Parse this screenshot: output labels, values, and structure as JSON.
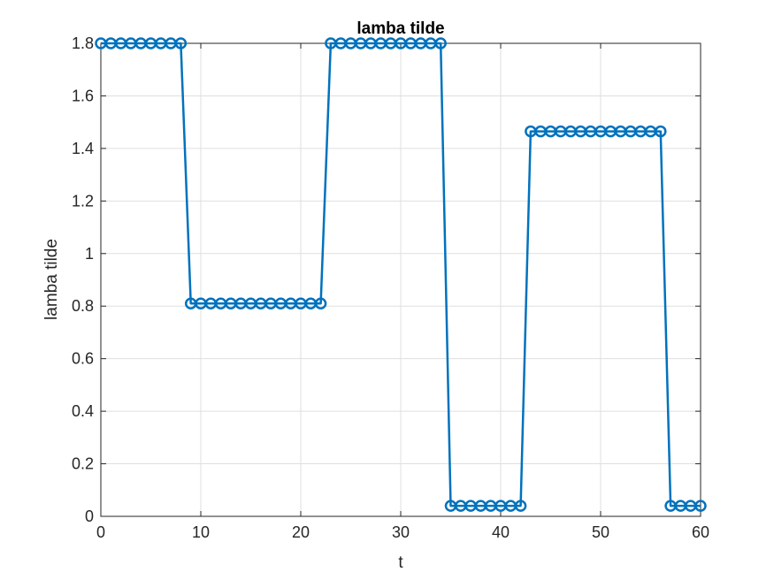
{
  "chart_data": {
    "type": "line",
    "title": "lamba tilde",
    "xlabel": "t",
    "ylabel": "lamba tilde",
    "xlim": [
      0,
      60
    ],
    "ylim": [
      0,
      1.8
    ],
    "xticks": [
      0,
      10,
      20,
      30,
      40,
      50,
      60
    ],
    "yticks": [
      0,
      0.2,
      0.4,
      0.6,
      0.8,
      1,
      1.2,
      1.4,
      1.6,
      1.8
    ],
    "xtick_labels": [
      "0",
      "10",
      "20",
      "30",
      "40",
      "50",
      "60"
    ],
    "ytick_labels": [
      "0",
      "0.2",
      "0.4",
      "0.6",
      "0.8",
      "1",
      "1.2",
      "1.4",
      "1.6",
      "1.8"
    ],
    "grid": true,
    "marker": "circle",
    "color": "#0072BD",
    "series": [
      {
        "x": [
          0,
          1,
          2,
          3,
          4,
          5,
          6,
          7,
          8,
          9,
          10,
          11,
          12,
          13,
          14,
          15,
          16,
          17,
          18,
          19,
          20,
          21,
          22,
          23,
          24,
          25,
          26,
          27,
          28,
          29,
          30,
          31,
          32,
          33,
          34,
          35,
          36,
          37,
          38,
          39,
          40,
          41,
          42,
          43,
          44,
          45,
          46,
          47,
          48,
          49,
          50,
          51,
          52,
          53,
          54,
          55,
          56,
          57,
          58,
          59,
          60
        ],
        "y": [
          1.8,
          1.8,
          1.8,
          1.8,
          1.8,
          1.8,
          1.8,
          1.8,
          1.8,
          0.81,
          0.81,
          0.81,
          0.81,
          0.81,
          0.81,
          0.81,
          0.81,
          0.81,
          0.81,
          0.81,
          0.81,
          0.81,
          0.81,
          1.8,
          1.8,
          1.8,
          1.8,
          1.8,
          1.8,
          1.8,
          1.8,
          1.8,
          1.8,
          1.8,
          1.8,
          0.04,
          0.04,
          0.04,
          0.04,
          0.04,
          0.04,
          0.04,
          0.04,
          1.465,
          1.465,
          1.465,
          1.465,
          1.465,
          1.465,
          1.465,
          1.465,
          1.465,
          1.465,
          1.465,
          1.465,
          1.465,
          1.465,
          0.04,
          0.04,
          0.04,
          0.04
        ]
      }
    ]
  }
}
